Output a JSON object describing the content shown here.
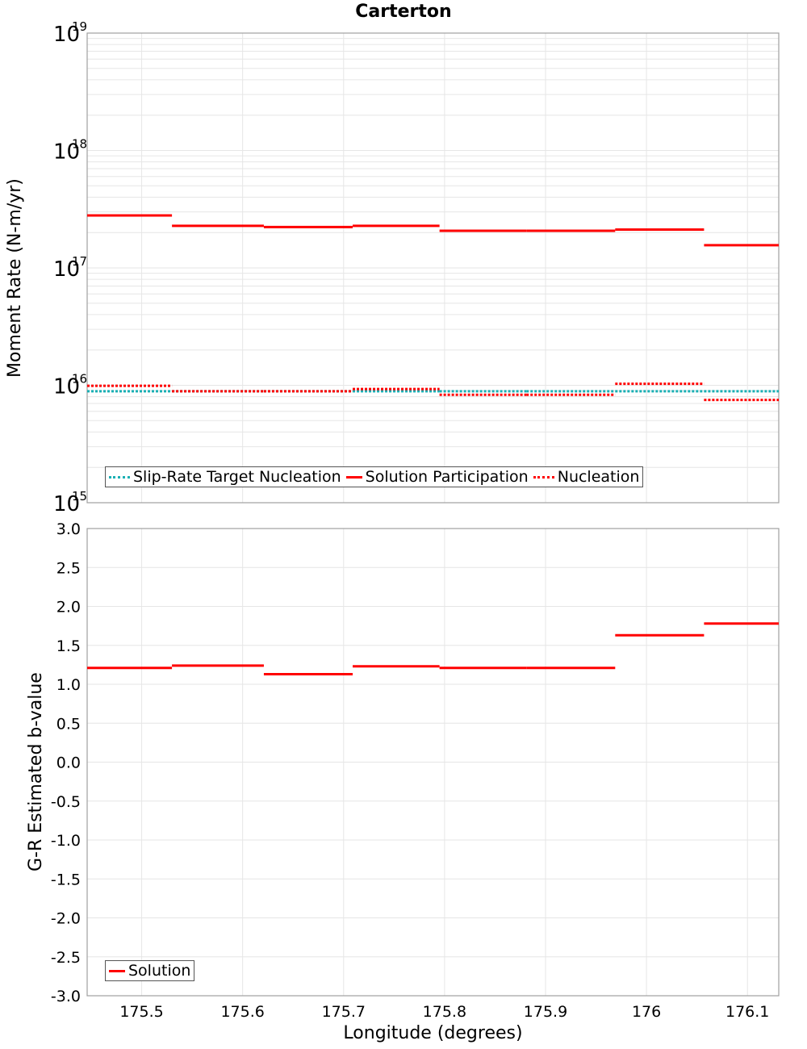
{
  "title": "Carterton",
  "colors": {
    "solution": "#ff0000",
    "nucleation": "#ff0000",
    "target": "#1aafb4",
    "grid": "#e6e6e6",
    "axis": "#a0a0a0"
  },
  "top_plot": {
    "ylabel": "Moment Rate (N-m/yr)",
    "yticks": [
      {
        "base": "10",
        "exp": "19",
        "value": 1e+19
      },
      {
        "base": "10",
        "exp": "18",
        "value": 1e+18
      },
      {
        "base": "10",
        "exp": "17",
        "value": 1e+17
      },
      {
        "base": "10",
        "exp": "16",
        "value": 1e+16
      },
      {
        "base": "10",
        "exp": "15",
        "value": 1000000000000000.0
      }
    ],
    "legend": [
      {
        "label": "Slip-Rate Target Nucleation",
        "style": "dot-cyan"
      },
      {
        "label": "Solution Participation",
        "style": "solid-red"
      },
      {
        "label": "Nucleation",
        "style": "dot-red"
      }
    ]
  },
  "bottom_plot": {
    "ylabel": "G-R Estimated b-value",
    "yticks": [
      "3.0",
      "2.5",
      "2.0",
      "1.5",
      "1.0",
      "0.5",
      "0.0",
      "-0.5",
      "-1.0",
      "-1.5",
      "-2.0",
      "-2.5",
      "-3.0"
    ],
    "legend": [
      {
        "label": "Solution",
        "style": "solid-red"
      }
    ]
  },
  "xaxis": {
    "label": "Longitude (degrees)",
    "ticks": [
      "175.5",
      "175.6",
      "175.7",
      "175.8",
      "175.9",
      "176",
      "176.1"
    ]
  },
  "chart_data": [
    {
      "type": "line",
      "title": "Carterton",
      "xlabel": "Longitude (degrees)",
      "ylabel": "Moment Rate (N-m/yr)",
      "yscale": "log",
      "ylim": [
        1000000000000000.0,
        1e+19
      ],
      "xlim": [
        175.446,
        176.131
      ],
      "grid": true,
      "legend_position": "lower left",
      "bin_edges": [
        175.446,
        175.53,
        175.621,
        175.709,
        175.795,
        175.881,
        175.969,
        176.057,
        176.131
      ],
      "series": [
        {
          "name": "Slip-Rate Target Nucleation",
          "style": "dotted",
          "color": "#1aafb4",
          "values": [
            8900000000000000.0,
            8900000000000000.0,
            8900000000000000.0,
            8900000000000000.0,
            8900000000000000.0,
            8900000000000000.0,
            8900000000000000.0,
            8900000000000000.0
          ]
        },
        {
          "name": "Solution Participation",
          "style": "solid",
          "color": "#ff0000",
          "values": [
            2.8e+17,
            2.28e+17,
            2.23e+17,
            2.28e+17,
            2.07e+17,
            2.07e+17,
            2.12e+17,
            1.56e+17
          ]
        },
        {
          "name": "Nucleation",
          "style": "dotted",
          "color": "#ff0000",
          "values": [
            9900000000000000.0,
            8900000000000000.0,
            8900000000000000.0,
            9300000000000000.0,
            8300000000000000.0,
            8300000000000000.0,
            1.03e+16,
            7500000000000000.0
          ]
        }
      ]
    },
    {
      "type": "line",
      "xlabel": "Longitude (degrees)",
      "ylabel": "G-R Estimated b-value",
      "ylim": [
        -3.0,
        3.0
      ],
      "xlim": [
        175.446,
        176.131
      ],
      "grid": true,
      "legend_position": "lower left",
      "bin_edges": [
        175.446,
        175.53,
        175.621,
        175.709,
        175.795,
        175.881,
        175.969,
        176.057,
        176.131
      ],
      "series": [
        {
          "name": "Solution",
          "style": "solid",
          "color": "#ff0000",
          "values": [
            1.21,
            1.24,
            1.13,
            1.23,
            1.21,
            1.21,
            1.63,
            1.78
          ]
        }
      ]
    }
  ]
}
